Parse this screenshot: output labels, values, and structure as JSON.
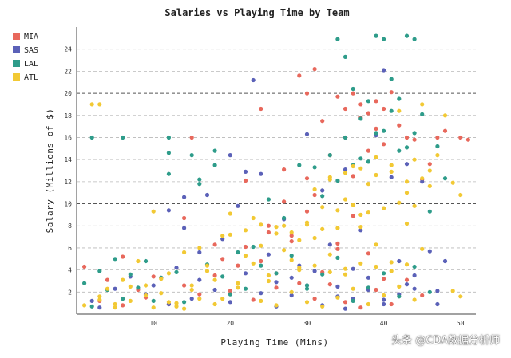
{
  "watermark": "头条 @CDA数据分析师",
  "chart_data": {
    "type": "scatter",
    "title": "Salaries vs Playing Time by Team",
    "xlabel": "Playing Time (Mins)",
    "ylabel": "Salary (Millions of $)",
    "xlim": [
      0,
      52
    ],
    "ylim": [
      0,
      26
    ],
    "xticks": [
      "10",
      "20",
      "30",
      "40",
      "50"
    ],
    "yticks": [
      "2",
      "4",
      "6",
      "8",
      "10",
      "12",
      "14",
      "16",
      "18",
      "20",
      "22",
      "24"
    ],
    "grid": "horizontal dashed",
    "legend_position": "top-left",
    "series": [
      {
        "name": "MIA",
        "color": "#e8685c",
        "x": [
          1,
          3,
          4,
          6,
          8,
          9,
          11,
          12,
          14,
          15,
          16,
          18,
          19,
          20,
          21,
          22,
          23,
          24,
          25,
          26,
          27,
          28,
          29,
          30,
          30,
          31,
          32,
          33,
          34,
          35,
          35,
          36,
          36,
          37,
          37,
          38,
          38,
          39,
          39,
          40,
          40,
          41,
          42,
          43,
          44,
          45,
          46,
          47,
          48,
          50,
          51,
          24,
          26,
          28,
          30,
          32,
          34,
          36,
          38,
          40,
          31,
          33,
          35,
          37,
          39,
          41,
          43,
          45,
          22,
          18,
          14,
          10,
          6,
          29,
          27,
          25,
          31,
          34
        ],
        "y": [
          4.3,
          1.2,
          3.1,
          0.8,
          2.2,
          1.5,
          3.3,
          0.9,
          2.6,
          16.0,
          1.8,
          3.5,
          5.0,
          2.1,
          4.4,
          6.1,
          1.3,
          18.6,
          8.0,
          3.7,
          10.2,
          6.6,
          2.8,
          20.0,
          12.3,
          22.2,
          17.5,
          14.4,
          19.7,
          18.6,
          16.0,
          20.0,
          12.5,
          19.0,
          17.8,
          18.2,
          14.8,
          19.3,
          16.8,
          18.6,
          15.4,
          20.1,
          17.1,
          16.0,
          15.8,
          12.2,
          13.6,
          16.0,
          16.6,
          16.0,
          15.8,
          4.8,
          2.4,
          7.1,
          9.3,
          3.8,
          6.4,
          8.9,
          5.5,
          3.2,
          1.4,
          2.7,
          1.1,
          0.6,
          2.2,
          0.9,
          3.1,
          1.7,
          12.1,
          6.3,
          8.7,
          3.4,
          5.2,
          21.6,
          13.1,
          7.4,
          10.8,
          5.9
        ]
      },
      {
        "name": "SAS",
        "color": "#5b61b8",
        "x": [
          2,
          3,
          5,
          7,
          9,
          10,
          12,
          13,
          14,
          15,
          16,
          17,
          18,
          19,
          20,
          21,
          22,
          23,
          24,
          25,
          26,
          27,
          28,
          29,
          30,
          31,
          32,
          33,
          34,
          35,
          36,
          37,
          38,
          39,
          40,
          41,
          42,
          43,
          44,
          45,
          46,
          47,
          48,
          24,
          26,
          28,
          30,
          32,
          34,
          36,
          38,
          40,
          42,
          44,
          16,
          14,
          12,
          20,
          22,
          35,
          40,
          43,
          47
        ],
        "y": [
          1.2,
          0.6,
          2.3,
          3.4,
          1.8,
          2.6,
          0.9,
          4.2,
          10.6,
          1.4,
          3.1,
          10.8,
          2.2,
          6.8,
          1.1,
          9.8,
          3.7,
          21.2,
          12.7,
          5.4,
          2.9,
          8.6,
          1.7,
          4.4,
          16.3,
          3.9,
          11.2,
          6.3,
          2.5,
          13.1,
          1.4,
          7.6,
          3.3,
          16.2,
          22.1,
          12.4,
          4.8,
          13.6,
          2.3,
          12.0,
          5.7,
          2.1,
          4.8,
          1.9,
          0.7,
          3.3,
          2.6,
          0.8,
          1.6,
          4.1,
          2.2,
          0.9,
          1.8,
          3.5,
          5.6,
          7.8,
          9.4,
          14.4,
          12.9,
          0.5,
          1.3,
          2.7,
          0.9
        ]
      },
      {
        "name": "LAL",
        "color": "#2e9c8a",
        "x": [
          1,
          2,
          3,
          4,
          5,
          6,
          7,
          8,
          9,
          10,
          11,
          12,
          12,
          13,
          14,
          15,
          16,
          17,
          18,
          18,
          19,
          20,
          21,
          22,
          23,
          24,
          25,
          26,
          27,
          28,
          29,
          30,
          31,
          32,
          33,
          34,
          34,
          35,
          35,
          36,
          36,
          37,
          37,
          38,
          38,
          39,
          39,
          40,
          40,
          41,
          41,
          42,
          42,
          43,
          43,
          44,
          44,
          45,
          46,
          47,
          48,
          36,
          38,
          40,
          42,
          44,
          46,
          30,
          32,
          34,
          2,
          6,
          12,
          16
        ],
        "y": [
          2.8,
          0.7,
          3.9,
          2.2,
          5.0,
          1.4,
          3.6,
          2.4,
          4.8,
          1.2,
          3.3,
          12.7,
          14.6,
          3.8,
          1.1,
          14.4,
          12.2,
          4.5,
          14.8,
          13.5,
          3.4,
          1.8,
          5.6,
          2.3,
          6.1,
          4.4,
          10.4,
          3.7,
          8.7,
          5.3,
          13.5,
          2.6,
          13.3,
          10.7,
          14.4,
          24.9,
          12.1,
          23.3,
          16.0,
          13.5,
          20.4,
          14.1,
          17.7,
          13.8,
          19.3,
          25.2,
          16.4,
          24.9,
          16.6,
          18.4,
          21.3,
          14.8,
          19.5,
          25.2,
          15.1,
          24.9,
          16.4,
          18.1,
          9.3,
          15.2,
          12.3,
          1.2,
          2.4,
          3.7,
          1.6,
          4.3,
          2.0,
          2.3,
          3.6,
          5.1,
          16.0,
          16.0,
          16.0,
          11.8
        ]
      },
      {
        "name": "ATL",
        "color": "#f2c934",
        "x": [
          1,
          2,
          3,
          4,
          5,
          6,
          7,
          8,
          9,
          10,
          11,
          12,
          13,
          14,
          15,
          16,
          17,
          18,
          19,
          20,
          21,
          22,
          23,
          24,
          25,
          26,
          27,
          28,
          29,
          30,
          31,
          32,
          33,
          34,
          35,
          36,
          37,
          38,
          39,
          40,
          41,
          42,
          43,
          44,
          45,
          46,
          47,
          48,
          49,
          50,
          3,
          3,
          5,
          7,
          9,
          11,
          13,
          15,
          17,
          19,
          21,
          23,
          25,
          27,
          29,
          31,
          33,
          35,
          37,
          39,
          41,
          43,
          45,
          24,
          26,
          28,
          30,
          32,
          34,
          36,
          38,
          40,
          42,
          44,
          20,
          22,
          24,
          26,
          28,
          30,
          32,
          34,
          36,
          38,
          40,
          42,
          44,
          46,
          10,
          12,
          14,
          16,
          18,
          33,
          35,
          37,
          39,
          41,
          43,
          45,
          29,
          31,
          33,
          35,
          37,
          39,
          41,
          43,
          49,
          50
        ],
        "y": [
          0.8,
          19.0,
          1.6,
          2.3,
          0.6,
          3.1,
          1.2,
          4.8,
          2.6,
          9.3,
          1.9,
          3.7,
          0.7,
          5.6,
          2.2,
          6.0,
          4.4,
          3.1,
          7.1,
          9.1,
          2.4,
          5.3,
          8.7,
          6.2,
          3.5,
          7.3,
          8.0,
          4.9,
          6.7,
          8.1,
          11.3,
          9.7,
          12.2,
          7.8,
          10.4,
          13.4,
          9.0,
          11.8,
          14.2,
          9.6,
          12.9,
          18.4,
          11.0,
          14.0,
          19.0,
          13.0,
          14.4,
          18.0,
          11.9,
          10.8,
          1.3,
          19.0,
          0.9,
          2.5,
          1.7,
          3.2,
          1.0,
          2.6,
          3.9,
          1.4,
          2.8,
          4.6,
          3.0,
          5.8,
          4.2,
          6.9,
          5.4,
          3.6,
          7.9,
          6.3,
          4.7,
          8.2,
          5.9,
          1.2,
          0.8,
          2.0,
          1.1,
          0.7,
          1.5,
          2.3,
          0.9,
          1.7,
          2.5,
          1.3,
          7.2,
          7.6,
          8.1,
          7.9,
          7.4,
          8.3,
          7.7,
          9.4,
          9.9,
          9.2,
          9.6,
          10.1,
          9.8,
          11.6,
          0.6,
          1.1,
          0.5,
          1.4,
          0.9,
          12.4,
          12.8,
          13.2,
          12.6,
          13.5,
          12.0,
          12.3,
          4.0,
          4.4,
          3.8,
          4.1,
          4.6,
          4.3,
          3.9,
          4.5,
          2.1,
          1.6
        ]
      }
    ]
  }
}
